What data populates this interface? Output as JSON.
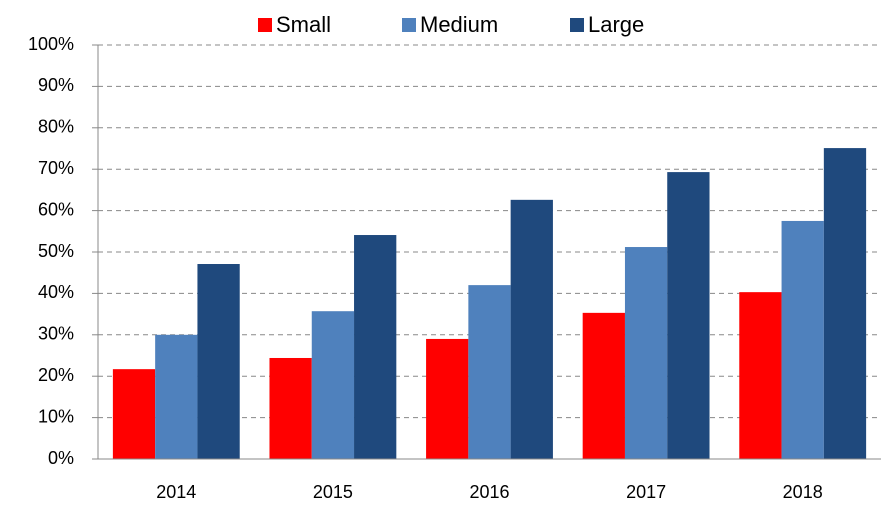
{
  "chart_data": {
    "type": "bar",
    "categories": [
      "2014",
      "2015",
      "2016",
      "2017",
      "2018"
    ],
    "series": [
      {
        "name": "Small",
        "color": "#ff0000",
        "values": [
          21.7,
          24.4,
          29.0,
          35.3,
          40.3
        ]
      },
      {
        "name": "Medium",
        "color": "#4f81bd",
        "values": [
          30.0,
          35.7,
          42.0,
          51.2,
          57.5
        ]
      },
      {
        "name": "Large",
        "color": "#1f497d",
        "values": [
          47.1,
          54.1,
          62.6,
          69.3,
          75.1
        ]
      }
    ],
    "ylim": [
      0,
      100
    ],
    "yticks": [
      {
        "value": 0,
        "label": "0%"
      },
      {
        "value": 10,
        "label": "10%"
      },
      {
        "value": 20,
        "label": "20%"
      },
      {
        "value": 30,
        "label": "30%"
      },
      {
        "value": 40,
        "label": "40%"
      },
      {
        "value": 50,
        "label": "50%"
      },
      {
        "value": 60,
        "label": "60%"
      },
      {
        "value": 70,
        "label": "70%"
      },
      {
        "value": 80,
        "label": "80%"
      },
      {
        "value": 90,
        "label": "90%"
      },
      {
        "value": 100,
        "label": "100%"
      }
    ],
    "grid": true,
    "legend": "top"
  }
}
